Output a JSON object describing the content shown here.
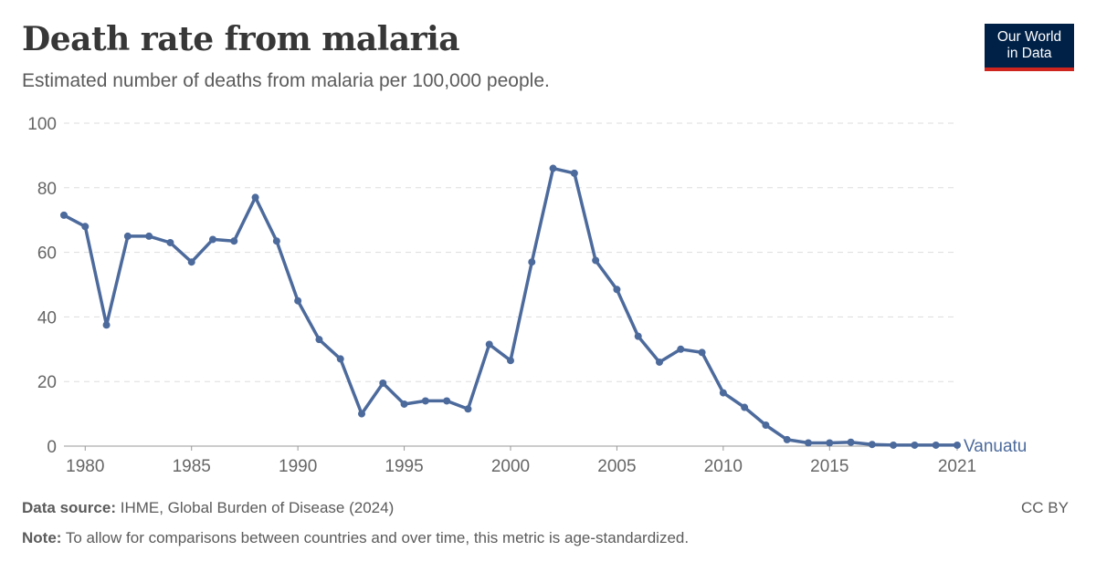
{
  "header": {
    "title": "Death rate from malaria",
    "subtitle": "Estimated number of deaths from malaria per 100,000 people."
  },
  "logo": {
    "line1": "Our World",
    "line2": "in Data",
    "bg_color": "#002147",
    "accent_color": "#ce261e"
  },
  "footer": {
    "source_label": "Data source:",
    "source_text": "IHME, Global Burden of Disease (2024)",
    "note_label": "Note:",
    "note_text": "To allow for comparisons between countries and over time, this metric is age-standardized.",
    "license": "CC BY"
  },
  "chart_data": {
    "type": "line",
    "title": "Death rate from malaria",
    "xlabel": "",
    "ylabel": "",
    "xlim": [
      1979,
      2021
    ],
    "ylim": [
      0,
      100
    ],
    "x_ticks": [
      1980,
      1985,
      1990,
      1995,
      2000,
      2005,
      2010,
      2015,
      2021
    ],
    "y_ticks": [
      0,
      20,
      40,
      60,
      80,
      100
    ],
    "grid": "horizontal dashed",
    "series_color": "#4c6a9c",
    "series": [
      {
        "name": "Vanuatu",
        "x": [
          1979,
          1980,
          1981,
          1982,
          1983,
          1984,
          1985,
          1986,
          1987,
          1988,
          1989,
          1990,
          1991,
          1992,
          1993,
          1994,
          1995,
          1996,
          1997,
          1998,
          1999,
          2000,
          2001,
          2002,
          2003,
          2004,
          2005,
          2006,
          2007,
          2008,
          2009,
          2010,
          2011,
          2012,
          2013,
          2014,
          2015,
          2016,
          2017,
          2018,
          2019,
          2020,
          2021
        ],
        "values": [
          71.5,
          68,
          37.5,
          65,
          65,
          63,
          57,
          64,
          63.5,
          77,
          63.5,
          45,
          33,
          27,
          10,
          19.5,
          13,
          14,
          14,
          11.5,
          31.5,
          26.5,
          57,
          86,
          84.5,
          57.5,
          48.5,
          34,
          26,
          30,
          29,
          16.5,
          12,
          6.5,
          2,
          1,
          1,
          1.2,
          0.5,
          0.3,
          0.3,
          0.3,
          0.3
        ]
      }
    ]
  }
}
